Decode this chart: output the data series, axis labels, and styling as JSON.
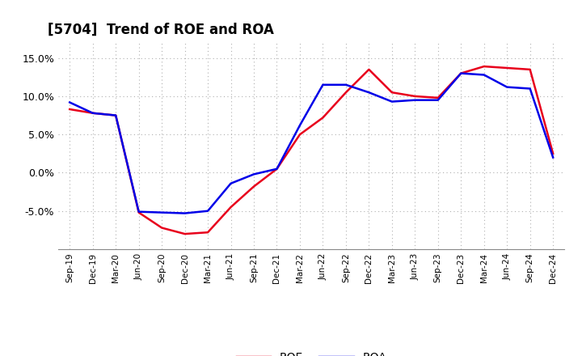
{
  "title": "[5704]  Trend of ROE and ROA",
  "labels": [
    "Sep-19",
    "Dec-19",
    "Mar-20",
    "Jun-20",
    "Sep-20",
    "Dec-20",
    "Mar-21",
    "Jun-21",
    "Sep-21",
    "Dec-21",
    "Mar-22",
    "Jun-22",
    "Sep-22",
    "Dec-22",
    "Mar-23",
    "Jun-23",
    "Sep-23",
    "Dec-23",
    "Mar-24",
    "Jun-24",
    "Sep-24",
    "Dec-24"
  ],
  "ROE": [
    8.3,
    7.8,
    7.5,
    -5.2,
    -7.2,
    -8.0,
    -7.8,
    -4.5,
    -1.8,
    0.5,
    5.0,
    7.2,
    10.5,
    13.5,
    10.5,
    10.0,
    9.8,
    13.0,
    13.9,
    13.7,
    13.5,
    2.5
  ],
  "ROA": [
    9.2,
    7.8,
    7.5,
    -5.1,
    -5.2,
    -5.3,
    -5.0,
    -1.4,
    -0.2,
    0.5,
    6.2,
    11.5,
    11.5,
    10.5,
    9.3,
    9.5,
    9.5,
    13.0,
    12.8,
    11.2,
    11.0,
    2.0
  ],
  "roe_color": "#e8001c",
  "roa_color": "#0000e8",
  "background_color": "#ffffff",
  "grid_color": "#b0b0b0",
  "ylim": [
    -10,
    17
  ],
  "yticks": [
    -5.0,
    0.0,
    5.0,
    10.0,
    15.0
  ],
  "line_width": 1.8,
  "title_fontsize": 12,
  "tick_fontsize": 7.5
}
